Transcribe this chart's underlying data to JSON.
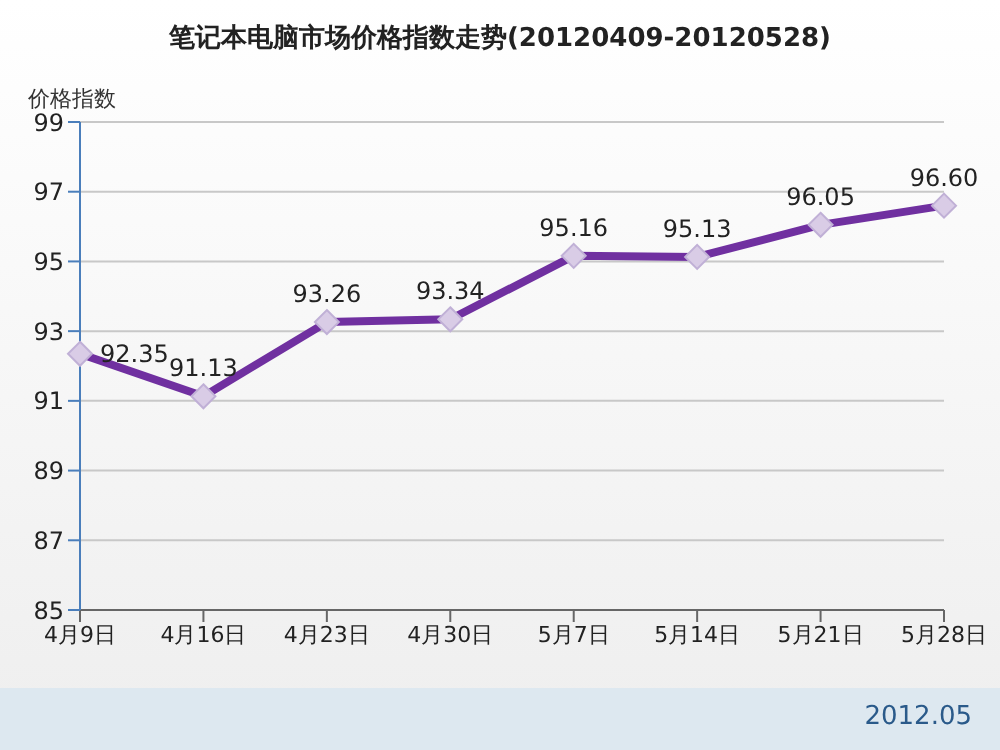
{
  "chart_data": {
    "type": "line",
    "title": "笔记本电脑市场价格指数走势(20120409-20120528)",
    "ylabel": "价格指数",
    "categories": [
      "4月9日",
      "4月16日",
      "4月23日",
      "4月30日",
      "5月7日",
      "5月14日",
      "5月21日",
      "5月28日"
    ],
    "series": [
      {
        "color": "#7030a0",
        "values": [
          92.35,
          91.13,
          93.26,
          93.34,
          95.16,
          95.13,
          96.05,
          96.6
        ],
        "value_labels": [
          "92.35",
          "91.13",
          "93.26",
          "93.34",
          "95.16",
          "95.13",
          "96.05",
          "96.60"
        ]
      }
    ],
    "ylim": [
      85,
      99
    ],
    "yticks": [
      85,
      87,
      89,
      91,
      93,
      95,
      97,
      99
    ],
    "grid": "y",
    "marker": "diamond",
    "line_style": "solid",
    "legend": false,
    "annotations": [
      "2012.05"
    ]
  }
}
